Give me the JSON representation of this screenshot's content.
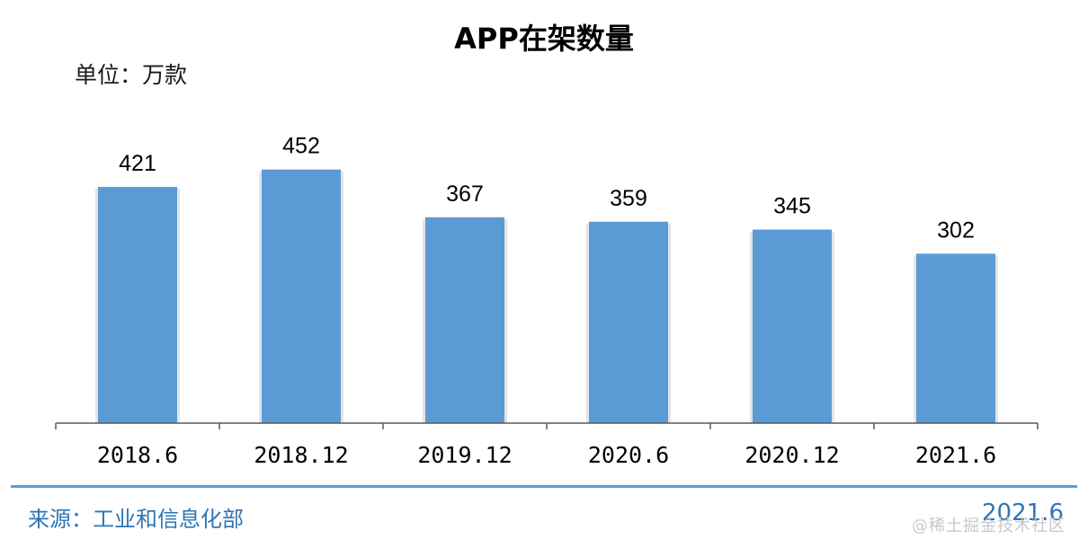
{
  "title": "APP在架数量",
  "unit_label": "单位：万款",
  "source": "来源：工业和信息化部",
  "date": "2021.6",
  "watermark": "@稀土掘金技术社区",
  "colors": {
    "bar": "#5b9bd5",
    "bar_shadow": "#d9d9d9",
    "axis": "#595959",
    "accent": "#2e75b6"
  },
  "chart_data": {
    "type": "bar",
    "categories": [
      "2018.6",
      "2018.12",
      "2019.12",
      "2020.6",
      "2020.12",
      "2021.6"
    ],
    "values": [
      421,
      452,
      367,
      359,
      345,
      302
    ],
    "title": "APP在架数量",
    "xlabel": "",
    "ylabel": "",
    "ylim": [
      0,
      540
    ],
    "grid": false,
    "legend": "none",
    "data_labels": true
  }
}
